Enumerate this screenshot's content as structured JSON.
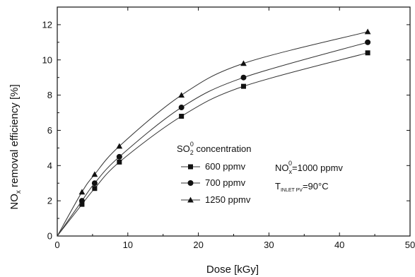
{
  "chart_data": {
    "type": "scatter",
    "title": "",
    "xlabel": "Dose [kGy]",
    "ylabel_parts": {
      "pre": "NO",
      "sub": "x",
      "post": " removal efficiency [%]"
    },
    "xlim": [
      0,
      50
    ],
    "ylim": [
      0,
      13
    ],
    "x_ticks": [
      0,
      10,
      20,
      30,
      40,
      50
    ],
    "y_ticks": [
      0,
      2,
      4,
      6,
      8,
      10,
      12
    ],
    "grid": false,
    "legend_position": "center",
    "legend_title": {
      "pre": "SO",
      "sub": "2",
      "sup": "0",
      "post": " concentration"
    },
    "series": [
      {
        "name": "600 ppmv",
        "marker": "square",
        "x": [
          0,
          3.5,
          5.3,
          8.8,
          17.6,
          26.4,
          44
        ],
        "y": [
          0,
          1.8,
          2.7,
          4.2,
          6.8,
          8.5,
          10.4
        ]
      },
      {
        "name": "700 ppmv",
        "marker": "circle",
        "x": [
          0,
          3.5,
          5.3,
          8.8,
          17.6,
          26.4,
          44
        ],
        "y": [
          0,
          2.0,
          3.0,
          4.5,
          7.3,
          9.0,
          11.0
        ]
      },
      {
        "name": "1250 ppmv",
        "marker": "triangle",
        "x": [
          0,
          3.5,
          5.3,
          8.8,
          17.6,
          26.4,
          44
        ],
        "y": [
          0,
          2.5,
          3.5,
          5.1,
          8.0,
          9.8,
          11.6
        ]
      }
    ],
    "conditions": {
      "nox": {
        "pre": "NO",
        "sub": "x",
        "sup": "0",
        "post": "=1000 ppmv"
      },
      "temp": {
        "pre": "T",
        "sub": "INLET PV",
        "post": "=90°C"
      }
    }
  }
}
